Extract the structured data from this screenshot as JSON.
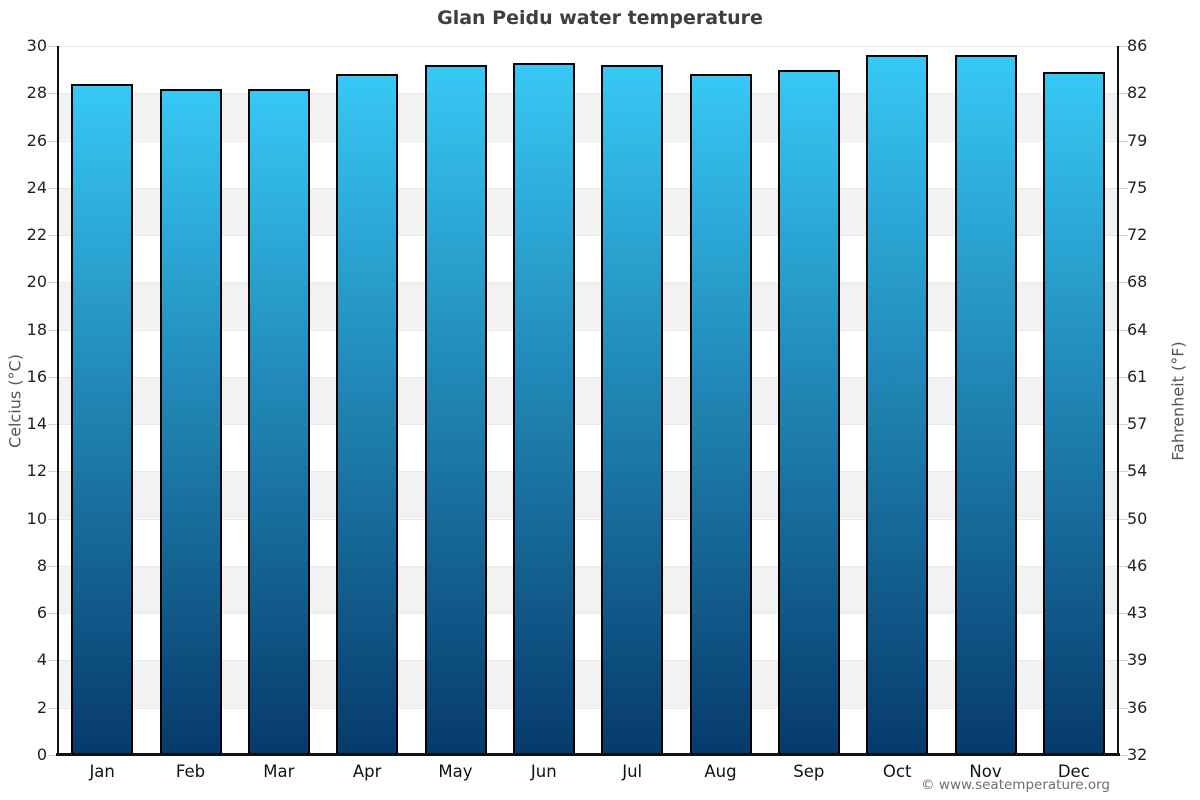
{
  "page": {
    "title": "Glan Peidu water temperature",
    "credit": "© www.seatemperature.org"
  },
  "chart_data": {
    "type": "bar",
    "title": "Glan Peidu water temperature",
    "categories": [
      "Jan",
      "Feb",
      "Mar",
      "Apr",
      "May",
      "Jun",
      "Jul",
      "Aug",
      "Sep",
      "Oct",
      "Nov",
      "Dec"
    ],
    "values": [
      28.4,
      28.2,
      28.2,
      28.8,
      29.2,
      29.3,
      29.2,
      28.8,
      29.0,
      29.6,
      29.6,
      28.9
    ],
    "unit": "°C",
    "ylabel_left": "Celcius (°C)",
    "ylabel_right": "Fahrenheit (°F)",
    "ylim": [
      0,
      30
    ],
    "yticks_left": [
      30,
      28,
      26,
      24,
      22,
      20,
      18,
      16,
      14,
      12,
      10,
      8,
      6,
      4,
      2,
      0
    ],
    "yticks_right": [
      86,
      82,
      79,
      75,
      72,
      68,
      64,
      61,
      57,
      54,
      50,
      46,
      43,
      39,
      36,
      32
    ],
    "legend": "none",
    "grid": "alternating horizontal stripes every 2°C",
    "colors": {
      "bar_gradient_top": "#37c8f5",
      "bar_gradient_bottom": "#063a6b",
      "bar_border": "#000000",
      "stripe": "#f2f2f2",
      "gridline": "#e9e9e9",
      "axis_line": "#111111",
      "title": "#3f3f3f",
      "tick_label": "#222222",
      "axis_title": "#555555",
      "credit": "#6e6e6e"
    }
  }
}
